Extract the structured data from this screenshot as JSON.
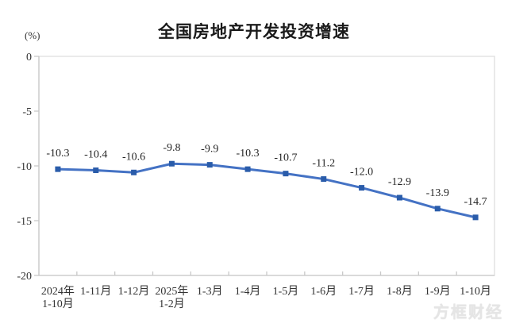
{
  "watermark": "方框财经",
  "chart_data": {
    "type": "line",
    "title": "全国房地产开发投资增速",
    "ylabel": "(%)",
    "xlabel": "",
    "categories": [
      "2024年\n1-10月",
      "1-11月",
      "1-12月",
      "2025年\n1-2月",
      "1-3月",
      "1-4月",
      "1-5月",
      "1-6月",
      "1-7月",
      "1-8月",
      "1-9月",
      "1-10月"
    ],
    "values": [
      -10.3,
      -10.4,
      -10.6,
      -9.8,
      -9.9,
      -10.3,
      -10.7,
      -11.2,
      -12.0,
      -12.9,
      -13.9,
      -14.7
    ],
    "data_labels": [
      "-10.3",
      "-10.4",
      "-10.6",
      "-9.8",
      "-9.9",
      "-10.3",
      "-10.7",
      "-11.2",
      "-12.0",
      "-12.9",
      "-13.9",
      "-14.7"
    ],
    "ylim": [
      -20,
      0
    ],
    "yticks": [
      0,
      -5,
      -10,
      -15,
      -20
    ],
    "grid": false,
    "legend_position": "none",
    "line_color": "#4472C4",
    "marker_color": "#2A5CAA",
    "axis_color": "#C9C9C9",
    "border_color": "#DEDEDE"
  }
}
